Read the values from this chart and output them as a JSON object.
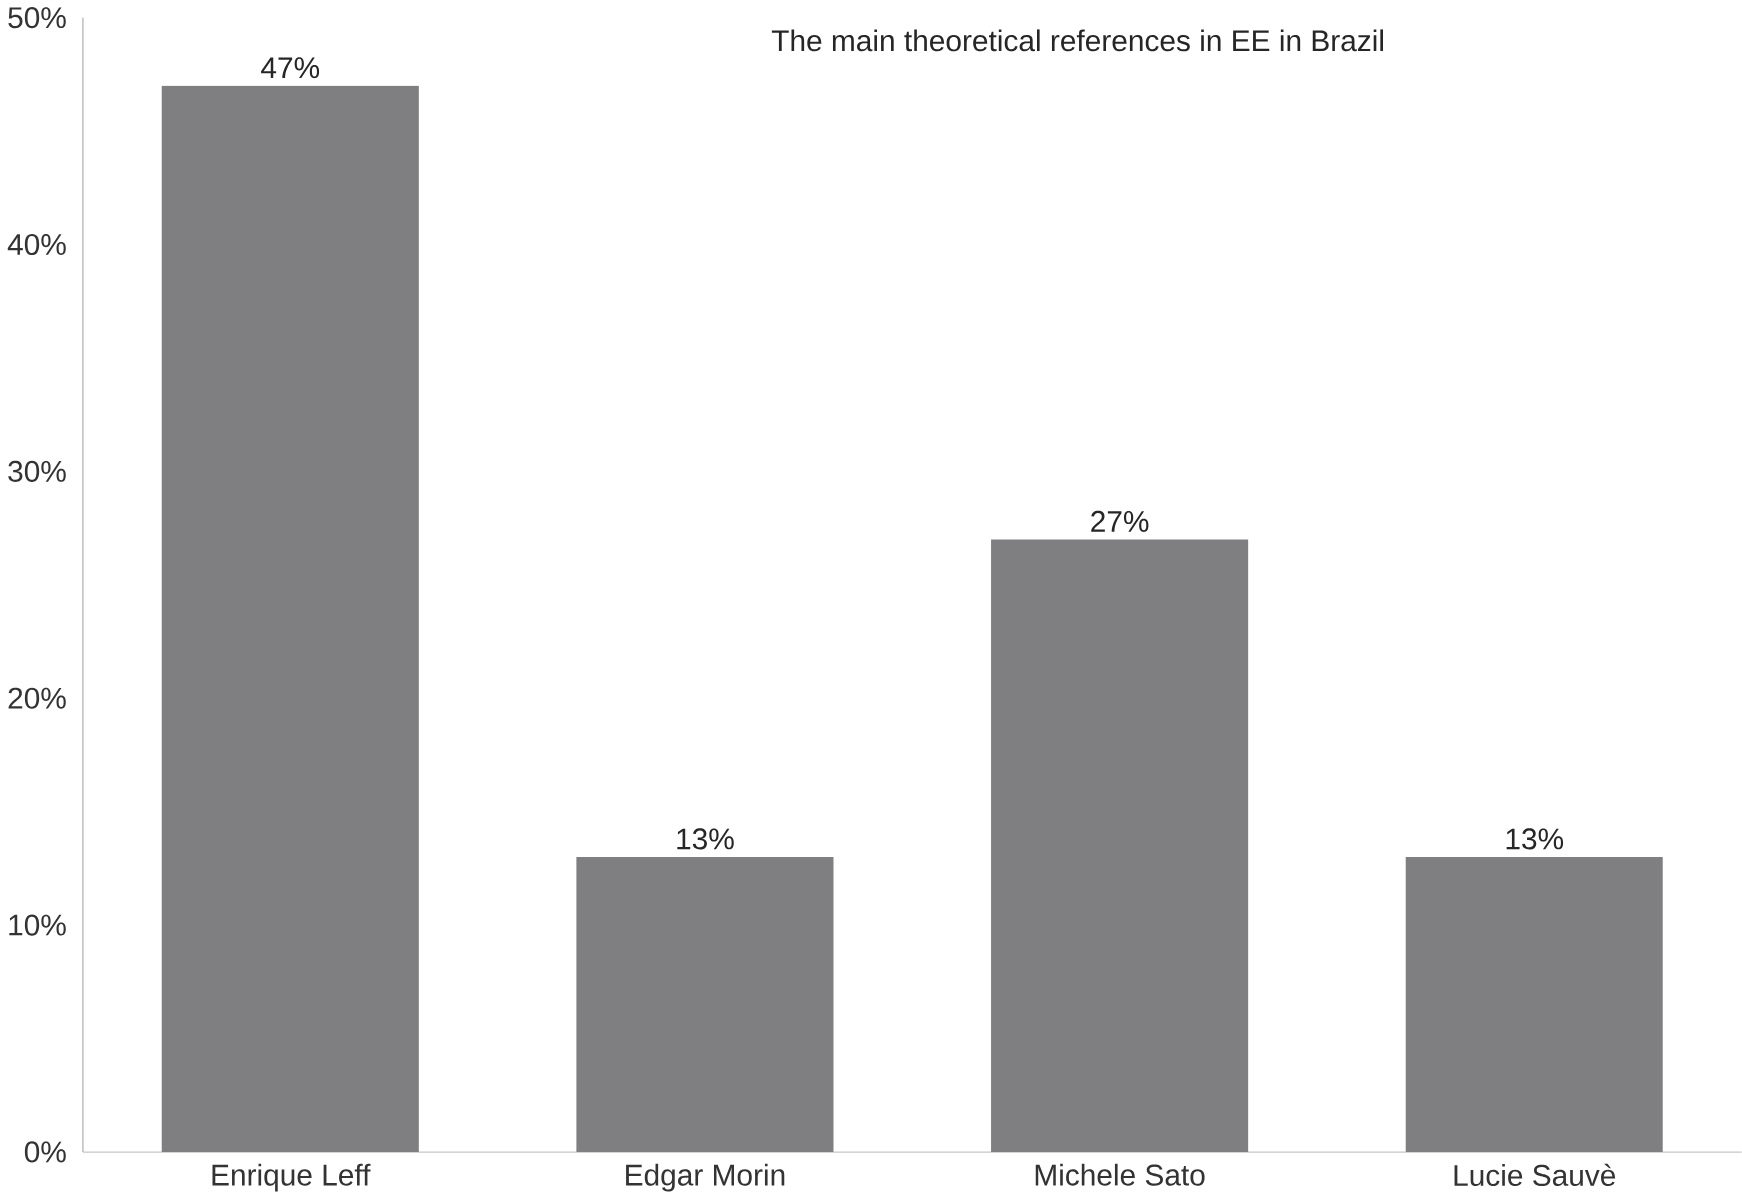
{
  "chart_data": {
    "type": "bar",
    "title": "The main theoretical references in EE in Brazil",
    "categories": [
      "Enrique Leff",
      "Edgar Morin",
      "Michele Sato",
      "Lucie Sauvè"
    ],
    "values": [
      47,
      13,
      27,
      13
    ],
    "value_labels": [
      "47%",
      "13%",
      "27%",
      "13%"
    ],
    "color": "#7f7f82",
    "ylim": [
      0,
      50
    ],
    "yticks": [
      {
        "value": 0,
        "label": "0%"
      },
      {
        "value": 10,
        "label": "10%"
      },
      {
        "value": 20,
        "label": "20%"
      },
      {
        "value": 30,
        "label": "30%"
      },
      {
        "value": 40,
        "label": "40%"
      },
      {
        "value": 50,
        "label": "50%"
      }
    ],
    "grid": false
  }
}
